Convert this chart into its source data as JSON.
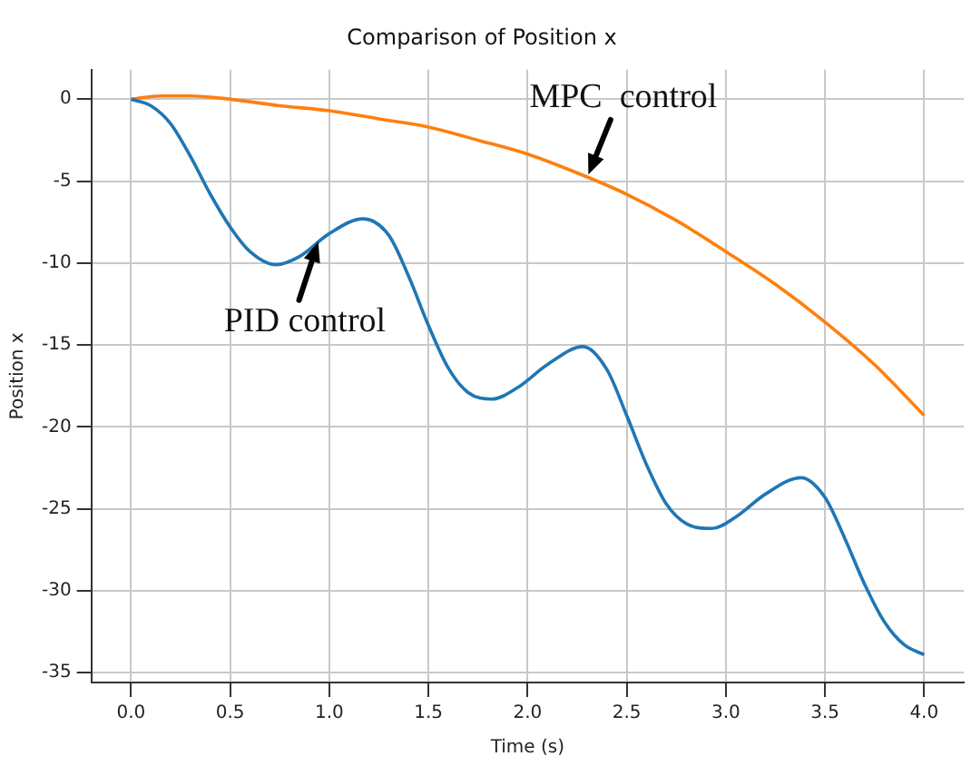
{
  "chart_data": {
    "type": "line",
    "title": "Comparison of Position x",
    "xlabel": "Time (s)",
    "ylabel": "Position x",
    "xlim": [
      -0.2,
      4.2
    ],
    "xticks": [
      {
        "value": 0,
        "label": "0.0"
      },
      0.5,
      {
        "value": 1,
        "label": "1.0"
      },
      1.5,
      {
        "value": 2,
        "label": "2.0"
      },
      2.5,
      {
        "value": 3,
        "label": "3.0"
      },
      3.5,
      {
        "value": 4,
        "label": "4.0"
      }
    ],
    "ylim": [
      -35.6,
      1.8
    ],
    "yticks": [
      0,
      -5,
      -10,
      -15,
      -20,
      -25,
      -30,
      -35
    ],
    "grid": true,
    "legend": false,
    "marker": "none",
    "line_style": "solid",
    "series": [
      {
        "color": "#1f77b4",
        "x": [
          0,
          0.1,
          0.2,
          0.3,
          0.4,
          0.5,
          0.6,
          0.73,
          0.85,
          1.0,
          1.17,
          1.3,
          1.4,
          1.5,
          1.6,
          1.7,
          1.82,
          1.95,
          2.1,
          2.28,
          2.4,
          2.5,
          2.6,
          2.7,
          2.8,
          2.93,
          3.05,
          3.2,
          3.38,
          3.5,
          3.6,
          3.7,
          3.8,
          3.9,
          4.0
        ],
        "values": [
          0,
          -0.4,
          -1.5,
          -3.5,
          -5.8,
          -7.8,
          -9.3,
          -10.1,
          -9.6,
          -8.2,
          -7.3,
          -8.3,
          -10.8,
          -13.8,
          -16.4,
          -17.9,
          -18.3,
          -17.6,
          -16.2,
          -15.1,
          -16.5,
          -19.3,
          -22.3,
          -24.7,
          -25.9,
          -26.2,
          -25.5,
          -24.1,
          -23.1,
          -24.3,
          -26.8,
          -29.6,
          -31.9,
          -33.3,
          -33.9
        ]
      },
      {
        "color": "#ff7f0e",
        "x": [
          0,
          0.15,
          0.3,
          0.5,
          0.75,
          1.0,
          1.25,
          1.5,
          1.75,
          2.0,
          2.25,
          2.5,
          2.75,
          3.0,
          3.25,
          3.5,
          3.75,
          4.0
        ],
        "values": [
          0,
          0.2,
          0.2,
          0,
          -0.4,
          -0.7,
          -1.2,
          -1.7,
          -2.5,
          -3.35,
          -4.5,
          -5.8,
          -7.4,
          -9.3,
          -11.3,
          -13.6,
          -16.2,
          -19.3
        ]
      }
    ],
    "annotations": [
      {
        "text": "MPC  control",
        "x": 2.3,
        "y": -4.8
      },
      {
        "text": "PID control",
        "x": 0.95,
        "y": -8.5
      }
    ]
  }
}
